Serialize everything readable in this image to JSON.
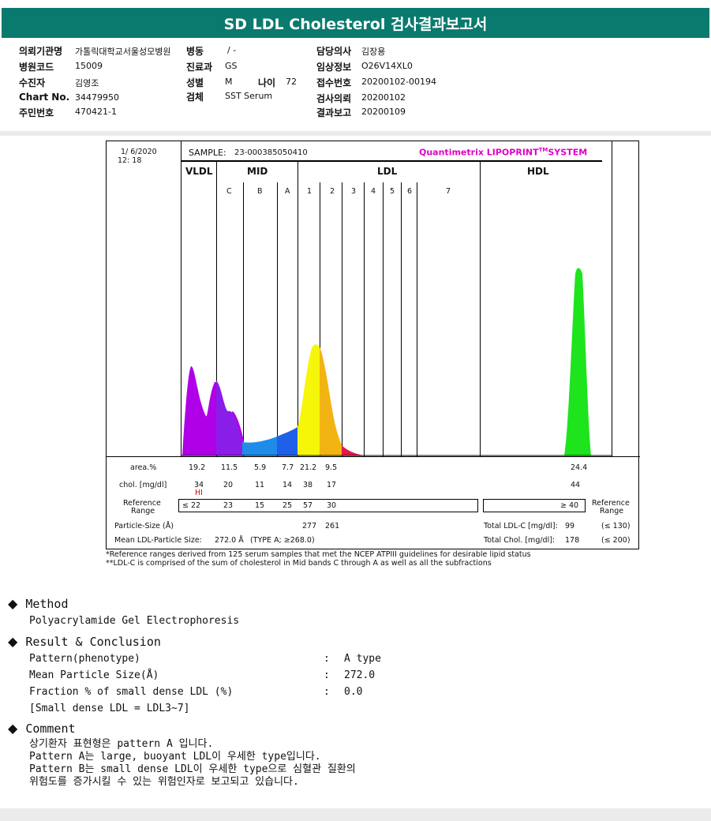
{
  "title": "SD LDL Cholesterol 검사결과보고서",
  "info": {
    "inst_label": "의뢰기관명",
    "inst_value": "가톨릭대학교서울성모병원",
    "ward_label": "병동",
    "ward_value": "/ -",
    "doctor_label": "담당의사",
    "doctor_value": "김장용",
    "code_label": "병원코드",
    "code_value": "15009",
    "dept_label": "진료과",
    "dept_value": "GS",
    "clinic_label": "임상정보",
    "clinic_value": "O26V14XL0",
    "patient_label": "수진자",
    "patient_value": "김영조",
    "sex_label": "성별",
    "sex_value": "M",
    "age_label": "나이",
    "age_value": "72",
    "receipt_label": "접수번호",
    "receipt_value": "20200102-00194",
    "chart_label": "Chart No.",
    "chart_value": "34479950",
    "specimen_label": "검체",
    "specimen_value": "SST Serum",
    "request_label": "검사의뢰",
    "request_value": "20200102",
    "id_label": "주민번호",
    "id_value": "470421-1",
    "result_label": "결과보고",
    "result_value": "20200109"
  },
  "report": {
    "date": "1/ 6/2020",
    "time": "12: 18",
    "sample_label": "SAMPLE:",
    "sample_value": "23-000385050410",
    "brand": "Quantimetrix LIPOPRINT",
    "brand_sup": "TM",
    "brand_suffix": "SYSTEM",
    "regions": {
      "vldl": "VLDL",
      "mid": "MID",
      "ldl": "LDL",
      "hdl": "HDL"
    },
    "bands": [
      "C",
      "B",
      "A",
      "1",
      "2",
      "3",
      "4",
      "5",
      "6",
      "7"
    ],
    "area_label": "area.%",
    "chol_label": "chol. [mg/dl]",
    "ref_label_1": "Reference",
    "ref_label_2": "Range",
    "areas": [
      "19.2",
      "11.5",
      "5.9",
      "7.7",
      "21.2",
      "9.5",
      "24.4"
    ],
    "chols": [
      "34",
      "20",
      "11",
      "14",
      "38",
      "17",
      "44"
    ],
    "hi_flag": "HI",
    "refs": [
      "≤ 22",
      "23",
      "15",
      "25",
      "57",
      "30",
      "≥ 40"
    ],
    "particle_label": "Particle-Size (Å)",
    "particle_vals": [
      "277",
      "261"
    ],
    "mean_label": "Mean LDL-Particle Size:",
    "mean_value": "272.0 Å",
    "mean_type": "(TYPE A; ≥268.0)",
    "total_ldl_label": "Total LDL-C [mg/dl]:",
    "total_ldl_value": "99",
    "total_ldl_ref": "(≤ 130)",
    "total_chol_label": "Total Chol. [mg/dl]:",
    "total_chol_value": "178",
    "total_chol_ref": "(≤ 200)"
  },
  "footnotes": [
    "*Reference ranges derived from 125 serum samples that met the NCEP ATPIII guidelines for desirable lipid status",
    "**LDL-C is comprised of the sum of cholesterol in Mid bands C through A as well as all the subfractions"
  ],
  "method": {
    "title": "Method",
    "text": "Polyacrylamide Gel Electrophoresis"
  },
  "result": {
    "title": "Result & Conclusion",
    "rows": [
      {
        "label": "Pattern(phenotype)",
        "value": "A type"
      },
      {
        "label": "Mean Particle Size(Å)",
        "value": "272.0"
      },
      {
        "label": "Fraction % of small dense LDL (%)",
        "value": "0.0"
      }
    ],
    "note": "[Small dense LDL = LDL3~7]",
    "colon": ":"
  },
  "comment": {
    "title": "Comment",
    "lines": [
      "상기환자 표현형은 pattern A 입니다.",
      "Pattern A는 large, buoyant LDL이 우세한 type입니다.",
      "Pattern B는 small dense LDL이 우세한 type으로 심혈관 질환의",
      "위험도를 증가시킬 수 있는 위험인자로 보고되고 있습니다."
    ]
  }
}
